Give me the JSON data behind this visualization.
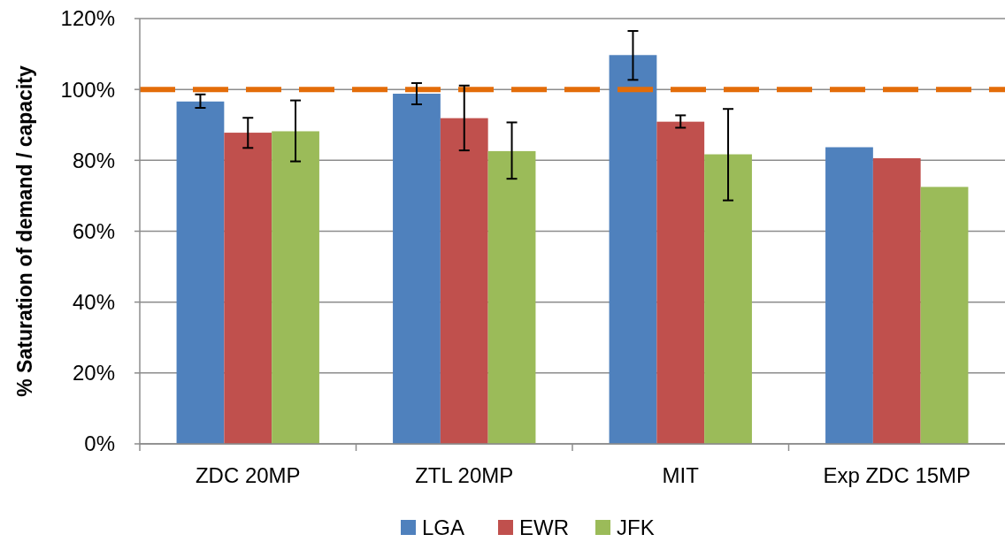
{
  "chart_data": {
    "type": "bar",
    "ylabel": "% Saturation of demand / capacity",
    "categories": [
      "ZDC 20MP",
      "ZTL 20MP",
      "MIT",
      "Exp ZDC 15MP"
    ],
    "series": [
      {
        "name": "LGA",
        "color": "#4f81bd",
        "values": [
          96.6,
          98.8,
          109.7,
          83.7
        ],
        "errors": [
          [
            94.8,
            98.6
          ],
          [
            95.8,
            101.8
          ],
          [
            102.7,
            116.5
          ],
          null
        ]
      },
      {
        "name": "EWR",
        "color": "#c0504d",
        "values": [
          87.8,
          91.9,
          90.9,
          80.6
        ],
        "errors": [
          [
            83.5,
            92.0
          ],
          [
            82.8,
            101.1
          ],
          [
            89.2,
            92.7
          ],
          null
        ]
      },
      {
        "name": "JFK",
        "color": "#9bbb59",
        "values": [
          88.2,
          82.6,
          81.7,
          72.5
        ],
        "errors": [
          [
            79.7,
            96.9
          ],
          [
            74.8,
            90.7
          ],
          [
            68.7,
            94.5
          ],
          null
        ]
      }
    ],
    "ylim": [
      0,
      120
    ],
    "yticks": [
      {
        "value": 0,
        "label": "0%"
      },
      {
        "value": 20,
        "label": "20%"
      },
      {
        "value": 40,
        "label": "40%"
      },
      {
        "value": 60,
        "label": "60%"
      },
      {
        "value": 80,
        "label": "80%"
      },
      {
        "value": 100,
        "label": "100%"
      },
      {
        "value": 120,
        "label": "120%"
      }
    ],
    "grid": "y",
    "legend": "bottom",
    "ref_lines": [
      {
        "axis": "y",
        "value": 100,
        "color": "#e36c09",
        "line_style": "dashed"
      }
    ]
  }
}
